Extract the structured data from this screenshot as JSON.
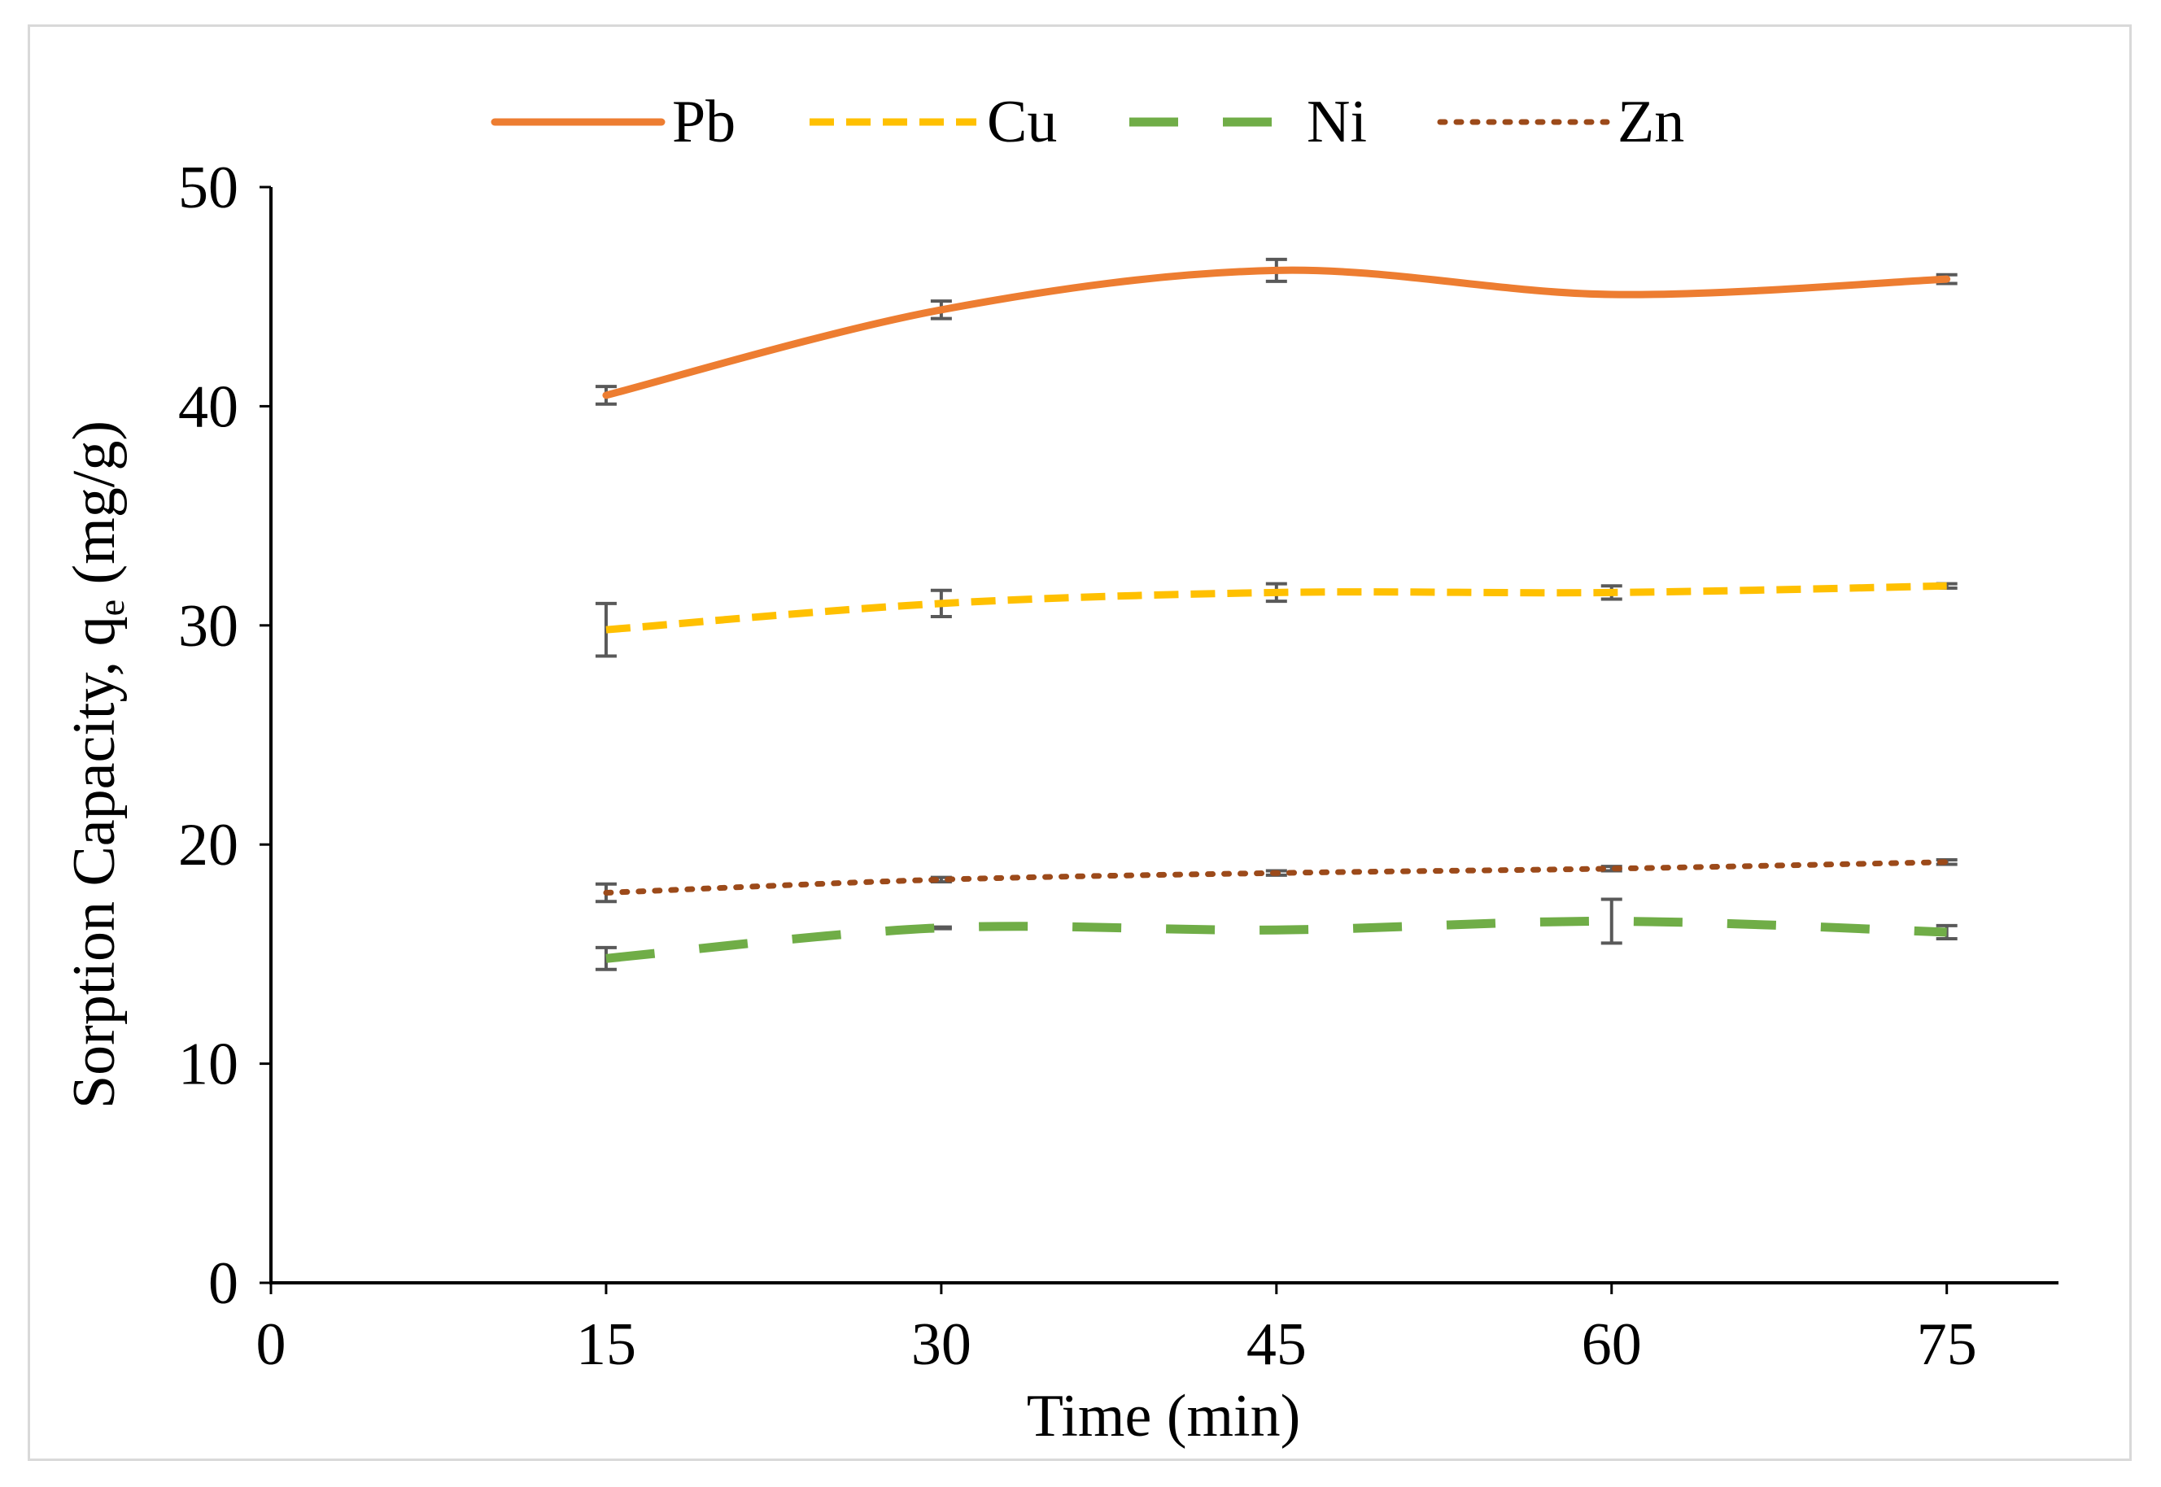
{
  "chart_data": {
    "type": "line",
    "title": "",
    "xlabel": "Time (min)",
    "ylabel_main": "Sorption Capacity, q",
    "ylabel_sub": "e",
    "ylabel_unit": " (mg/g)",
    "xlim": [
      0,
      80
    ],
    "ylim": [
      0,
      50
    ],
    "x_ticks": [
      0,
      15,
      30,
      45,
      60,
      75
    ],
    "y_ticks": [
      0,
      10,
      20,
      30,
      40,
      50
    ],
    "x_tick_labels": [
      "0",
      "15",
      "30",
      "45",
      "60",
      "75"
    ],
    "y_tick_labels": [
      "0",
      "10",
      "20",
      "30",
      "40",
      "50"
    ],
    "legend_position": "top",
    "grid": false,
    "x": [
      15,
      30,
      45,
      60,
      75
    ],
    "series": [
      {
        "name": "Pb",
        "color": "#ED7D31",
        "style": "solid",
        "values": [
          40.5,
          44.4,
          46.2,
          45.1,
          45.8
        ],
        "errors": [
          0.4,
          0.4,
          0.5,
          0.0,
          0.2
        ]
      },
      {
        "name": "Cu",
        "color": "#FFC000",
        "style": "dash",
        "values": [
          29.8,
          31.0,
          31.5,
          31.5,
          31.8
        ],
        "errors": [
          1.2,
          0.6,
          0.4,
          0.3,
          0.1
        ]
      },
      {
        "name": "Ni",
        "color": "#70AD47",
        "style": "longdash",
        "values": [
          14.8,
          16.2,
          16.1,
          16.5,
          16.0
        ],
        "errors": [
          0.5,
          0.0,
          0.0,
          1.0,
          0.3
        ]
      },
      {
        "name": "Zn",
        "color": "#9C4A1A",
        "style": "dot",
        "values": [
          17.8,
          18.4,
          18.7,
          18.9,
          19.2
        ],
        "errors": [
          0.4,
          0.1,
          0.1,
          0.1,
          0.1
        ]
      }
    ]
  }
}
